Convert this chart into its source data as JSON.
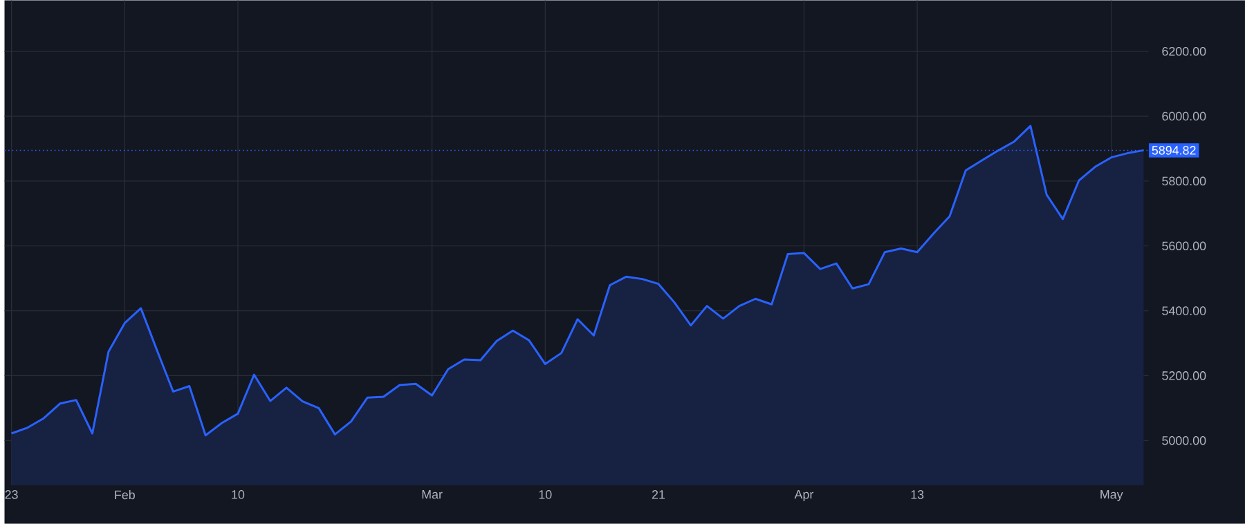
{
  "chart_data": {
    "type": "area",
    "categories": [
      "23",
      null,
      null,
      null,
      null,
      null,
      null,
      "Feb",
      null,
      null,
      null,
      null,
      null,
      null,
      "10",
      null,
      null,
      null,
      null,
      null,
      null,
      null,
      null,
      null,
      null,
      null,
      "Mar",
      null,
      null,
      null,
      null,
      null,
      null,
      "10",
      null,
      null,
      null,
      null,
      null,
      null,
      "21",
      null,
      null,
      null,
      null,
      null,
      null,
      null,
      null,
      "Apr",
      null,
      null,
      null,
      null,
      null,
      null,
      "13",
      null,
      null,
      null,
      null,
      null,
      null,
      null,
      null,
      null,
      null,
      null,
      "May",
      null,
      null
    ],
    "series": [
      {
        "color": "#2962ff",
        "values": [
          5022,
          5040,
          5069,
          5114,
          5125,
          5022,
          5274,
          5362,
          5408,
          5278,
          5151,
          5168,
          5016,
          5054,
          5083,
          5203,
          5122,
          5163,
          5121,
          5100,
          5019,
          5059,
          5132,
          5135,
          5171,
          5175,
          5139,
          5220,
          5250,
          5248,
          5307,
          5339,
          5309,
          5236,
          5270,
          5374,
          5324,
          5479,
          5505,
          5498,
          5483,
          5425,
          5355,
          5415,
          5376,
          5415,
          5437,
          5420,
          5575,
          5578,
          5529,
          5546,
          5469,
          5482,
          5581,
          5592,
          5581,
          5638,
          5691,
          5833,
          5864,
          5894,
          5922,
          5970,
          5758,
          5683,
          5802,
          5844,
          5873,
          5886,
          5895
        ]
      }
    ],
    "ylim": [
      4862,
      6357
    ],
    "yticks": [
      {
        "value": 5000,
        "label": "5000.00"
      },
      {
        "value": 5200,
        "label": "5200.00"
      },
      {
        "value": 5400,
        "label": "5400.00"
      },
      {
        "value": 5600,
        "label": "5600.00"
      },
      {
        "value": 5800,
        "label": "5800.00"
      },
      {
        "value": 6000,
        "label": "6000.00"
      },
      {
        "value": 6200,
        "label": "6200.00"
      }
    ],
    "ref_lines": [
      {
        "axis": "y",
        "value": 5894.82,
        "label": "5894.82",
        "color": "#2962ff",
        "line_style": "dotted"
      }
    ],
    "grid": true,
    "marker": "none"
  }
}
